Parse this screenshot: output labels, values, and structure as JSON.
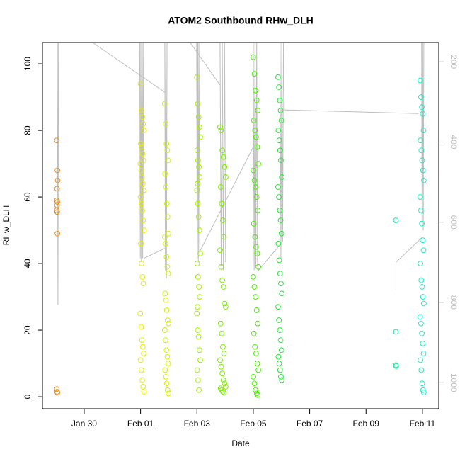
{
  "chart_data": {
    "type": "scatter",
    "title": "ATOM2 Southbound RHw_DLH",
    "xlabel": "Date",
    "ylabel": "RHw_DLH",
    "xlim": [
      28.52,
      42.58
    ],
    "ylim": [
      -3.6,
      106.4
    ],
    "y2lim": [
      1065,
      152
    ],
    "xticks": [
      {
        "value": 30,
        "label": "Jan 30"
      },
      {
        "value": 32,
        "label": "Feb 01"
      },
      {
        "value": 34,
        "label": "Feb 03"
      },
      {
        "value": 36,
        "label": "Feb 05"
      },
      {
        "value": 38,
        "label": "Feb 07"
      },
      {
        "value": 40,
        "label": "Feb 09"
      },
      {
        "value": 42,
        "label": "Feb 11"
      }
    ],
    "yticks": [
      0,
      20,
      40,
      60,
      80,
      100
    ],
    "y2ticks": [
      200,
      400,
      600,
      800,
      1000
    ],
    "series": [
      {
        "style": "line",
        "axis": "y2",
        "color": "#bebebe",
        "x": [
          29.05,
          29.07,
          29.09,
          null,
          30.3,
          32.86,
          null,
          31.97,
          31.99,
          32.01,
          32.03,
          32.05,
          32.07,
          32.09,
          32.12,
          32.86,
          null,
          32.86,
          32.88,
          32.9,
          32.92,
          32.94,
          null,
          33.76,
          34.82,
          null,
          33.99,
          34.01,
          34.03,
          34.05,
          34.07,
          34.1,
          36.03,
          null,
          34.82,
          34.86,
          34.9,
          34.94,
          34.98,
          35.02,
          null,
          36.0,
          36.03,
          36.06,
          36.09,
          36.12,
          36.15,
          36.18,
          36.95,
          null,
          36.95,
          36.98,
          37.01,
          37.04,
          37.07,
          37.1,
          41.86,
          null,
          41.06,
          41.06,
          41.99,
          null,
          41.97,
          41.99,
          42.01,
          42.03,
          42.05
        ],
        "values": [
          152,
          806,
          152,
          null,
          152,
          276,
          null,
          152,
          690,
          152,
          700,
          152,
          690,
          152,
          690,
          665,
          null,
          152,
          720,
          152,
          740,
          152,
          null,
          152,
          258,
          null,
          152,
          690,
          152,
          700,
          152,
          673,
          408,
          null,
          152,
          710,
          152,
          720,
          152,
          700,
          null,
          152,
          720,
          152,
          710,
          152,
          700,
          720,
          656,
          null,
          152,
          690,
          152,
          650,
          152,
          320,
          329,
          null,
          767,
          700,
          638,
          null,
          152,
          650,
          152,
          620,
          152
        ]
      },
      {
        "style": "points",
        "color": "#f0901c",
        "x": [
          29.03,
          29.05,
          29.06,
          29.04,
          29.03,
          29.05,
          29.04,
          29.03,
          29.04,
          29.05,
          29.03,
          29.04,
          29.05
        ],
        "values": [
          77,
          68,
          65,
          62.5,
          59,
          58.5,
          57.5,
          56,
          55.5,
          49,
          2.3,
          1.5,
          1.2
        ]
      },
      {
        "style": "points",
        "color": "#e4ee00",
        "x": [
          32.0,
          32.03,
          32.06,
          32.09,
          32.12,
          32.01,
          32.04,
          32.07,
          32.1,
          31.99,
          32.02,
          32.05,
          32.08,
          32.11,
          32.0,
          32.03,
          32.06,
          32.09,
          32.12,
          32.01,
          32.04,
          32.07,
          32.1,
          31.99,
          32.02,
          32.05,
          32.08,
          32.11,
          32.0,
          32.03,
          32.06,
          32.09,
          32.12
        ],
        "values": [
          94,
          86,
          84,
          82,
          80,
          76,
          75,
          73,
          71,
          70,
          68,
          66,
          64,
          62,
          60,
          58,
          56,
          53,
          50,
          46,
          40,
          36,
          34,
          25,
          21,
          17,
          15,
          13,
          11,
          8,
          5,
          3,
          1.5
        ]
      },
      {
        "style": "points",
        "color": "#d2f200",
        "x": [
          32.86,
          32.89,
          32.92,
          32.95,
          32.98,
          32.87,
          32.9,
          32.93,
          32.96,
          32.99,
          32.86,
          32.89,
          32.92,
          32.95,
          32.98,
          32.87,
          32.9,
          32.93,
          32.96,
          32.99,
          32.86,
          32.89,
          32.92,
          32.95,
          32.98,
          32.87,
          32.9,
          32.93,
          32.96,
          32.99
        ],
        "values": [
          88,
          82,
          76,
          74,
          71,
          67,
          63,
          58,
          54,
          49,
          48,
          46,
          42,
          39,
          37,
          31,
          29,
          26,
          23,
          22,
          20,
          17,
          14,
          12,
          10,
          8,
          6,
          4,
          2,
          1
        ]
      },
      {
        "style": "points",
        "color": "#a6f000",
        "x": [
          34.0,
          34.03,
          34.06,
          34.09,
          34.12,
          34.01,
          34.04,
          34.07,
          34.1,
          34.02,
          34.0,
          34.03,
          34.06,
          34.09,
          34.12,
          34.01,
          34.04,
          34.07,
          34.1,
          34.02,
          34.0,
          34.03,
          34.06,
          34.09,
          34.12,
          34.01,
          34.04,
          34.07
        ],
        "values": [
          96,
          88,
          84,
          81,
          78,
          74,
          71,
          69,
          66,
          64,
          62,
          58,
          54,
          50,
          43,
          40,
          36,
          33,
          30,
          27,
          25,
          20,
          18,
          14,
          11,
          8,
          5,
          2
        ]
      },
      {
        "style": "points",
        "color": "#7cee00",
        "x": [
          34.82,
          34.86,
          34.9,
          34.94,
          34.98,
          35.02,
          34.84,
          34.88,
          34.92,
          34.96,
          34.82,
          34.86,
          34.9,
          34.94,
          34.98,
          35.02,
          34.84,
          34.88,
          34.92,
          34.96,
          34.82,
          34.86,
          34.9,
          34.94,
          34.98,
          35.02,
          34.84,
          34.88,
          34.92,
          34.96
        ],
        "values": [
          81,
          80,
          74,
          72,
          69,
          66,
          63,
          58,
          53,
          48,
          44,
          39,
          35,
          33,
          28,
          27,
          22,
          19,
          15,
          13,
          11,
          9,
          7,
          5,
          4,
          3,
          2.5,
          2,
          1.5,
          1.2
        ]
      },
      {
        "style": "points",
        "color": "#4cec00",
        "x": [
          36.0,
          36.04,
          36.08,
          36.12,
          36.16,
          36.02,
          36.06,
          36.1,
          36.14,
          36.18,
          36.0,
          36.04,
          36.08,
          36.12,
          36.16,
          36.02,
          36.06,
          36.1,
          36.14,
          36.18,
          36.0,
          36.04,
          36.08,
          36.12,
          36.16,
          36.02,
          36.06,
          36.1,
          36.14,
          36.18,
          36.0,
          36.04,
          36.08,
          36.12,
          36.16
        ],
        "values": [
          102,
          97,
          92,
          89,
          86,
          83,
          80,
          78,
          75,
          70,
          68,
          65,
          63,
          60,
          56,
          52,
          48,
          45,
          43,
          39,
          36,
          33,
          30,
          26,
          22,
          19,
          15,
          13,
          10,
          8,
          6,
          4,
          2,
          1,
          0.5
        ]
      },
      {
        "style": "points",
        "color": "#28e63a",
        "x": [
          36.88,
          36.91,
          36.94,
          36.97,
          37.0,
          36.89,
          36.92,
          36.95,
          36.98,
          37.01,
          36.88,
          36.91,
          36.94,
          36.97,
          37.0,
          36.89,
          36.92,
          36.95,
          36.98,
          37.01,
          36.88,
          36.91,
          36.94,
          36.97,
          37.0,
          36.89,
          36.92,
          36.95,
          36.98,
          37.01
        ],
        "values": [
          96,
          93,
          89,
          86,
          83,
          80,
          77,
          74,
          71,
          66,
          63,
          60,
          56,
          53,
          49,
          46,
          41,
          37,
          34,
          31,
          27,
          23,
          20,
          17,
          14,
          12,
          10,
          8,
          6,
          5
        ]
      },
      {
        "style": "points",
        "color": "#1ee89c",
        "x": [
          41.06,
          41.06,
          41.06,
          41.07
        ],
        "values": [
          53,
          19.5,
          9.5,
          9.2
        ]
      },
      {
        "style": "points",
        "color": "#1eecc4",
        "x": [
          41.92,
          41.95,
          41.98,
          42.01,
          42.04,
          41.93,
          41.96,
          41.99,
          42.02,
          42.05,
          41.92,
          41.95,
          41.98,
          42.01,
          42.04,
          41.93,
          41.96,
          41.99,
          42.02,
          42.05,
          41.92,
          41.95,
          41.98,
          42.01,
          42.04,
          41.93,
          41.96,
          41.99,
          42.02,
          42.05
        ],
        "values": [
          95,
          90,
          87,
          85,
          80,
          77,
          74,
          71,
          68,
          65,
          60,
          56,
          52,
          47,
          44,
          40,
          35,
          33,
          30,
          28,
          24,
          22,
          19,
          16,
          13,
          11,
          8,
          4,
          2,
          1.3
        ]
      }
    ]
  }
}
